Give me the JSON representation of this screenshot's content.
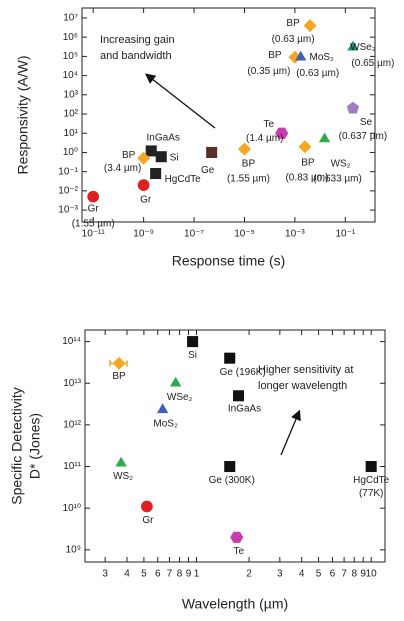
{
  "chart_data": [
    {
      "type": "scatter",
      "xlabel": "Response time (s)",
      "ylabel": [
        "Responsivity (A/W)"
      ],
      "xlog": true,
      "ylog": true,
      "xlim": [
        3.6e-12,
        1.5
      ],
      "ylim": [
        0.00024,
        33000000
      ],
      "xticks": [
        {
          "value": 1e-11,
          "label": "10⁻¹¹"
        },
        {
          "value": 1e-09,
          "label": "10⁻⁹"
        },
        {
          "value": 1e-07,
          "label": "10⁻⁷"
        },
        {
          "value": 1e-05,
          "label": "10⁻⁵"
        },
        {
          "value": 0.001,
          "label": "10⁻³"
        },
        {
          "value": 0.1,
          "label": "10⁻¹"
        }
      ],
      "yticks": [
        {
          "value": 0.001,
          "label": "10⁻³"
        },
        {
          "value": 0.01,
          "label": "10⁻²"
        },
        {
          "value": 0.1,
          "label": "10⁻¹"
        },
        {
          "value": 1,
          "label": "10⁰"
        },
        {
          "value": 10,
          "label": "10¹"
        },
        {
          "value": 100,
          "label": "10²"
        },
        {
          "value": 1000,
          "label": "10³"
        },
        {
          "value": 10000,
          "label": "10⁴"
        },
        {
          "value": 100000,
          "label": "10⁵"
        },
        {
          "value": 1000000,
          "label": "10⁶"
        },
        {
          "value": 10000000,
          "label": "10⁷"
        }
      ],
      "annotation": [
        "Increasing gain",
        "and bandwidth"
      ],
      "points": [
        {
          "label": "BP",
          "sublabel": "(0.63 µm)",
          "x": 0.004,
          "y": 4000000,
          "marker": "diamond",
          "color": "#f5a623"
        },
        {
          "label": "WSe₂",
          "sublabel": "(0.65 µm)",
          "x": 0.2,
          "y": 300000,
          "marker": "triangle",
          "color": "#1a8f7a"
        },
        {
          "label": "BP",
          "sublabel": "(0.35 µm)",
          "x": 0.001,
          "y": 90000,
          "marker": "diamond",
          "color": "#f5a623"
        },
        {
          "label": "MoS₂",
          "sublabel": "(0.63 µm)",
          "x": 0.0017,
          "y": 90000,
          "marker": "triangle",
          "color": "#3f5fb0"
        },
        {
          "label": "Se",
          "sublabel": "(0.637 µm)",
          "x": 0.2,
          "y": 200,
          "marker": "pentagon",
          "color": "#a07cc0"
        },
        {
          "label": "Te",
          "sublabel": "(1.4 µm)",
          "x": 0.0003,
          "y": 10,
          "marker": "hexagon",
          "color": "#c83cb0"
        },
        {
          "label": "WS₂",
          "sublabel": "(0.633 µm)",
          "x": 0.015,
          "y": 5,
          "marker": "triangle",
          "color": "#2eaa4f"
        },
        {
          "label": "BP",
          "sublabel": "(0.83 µm)",
          "x": 0.0025,
          "y": 2,
          "marker": "diamond",
          "color": "#f5a623"
        },
        {
          "label": "BP",
          "sublabel": "(1.55 µm)",
          "x": 1e-05,
          "y": 1.5,
          "marker": "diamond",
          "color": "#f5a623"
        },
        {
          "label": "Ge",
          "x": 5e-07,
          "y": 1,
          "marker": "square",
          "color": "#5a2f2a"
        },
        {
          "label": "InGaAs",
          "x": 2e-09,
          "y": 1.2,
          "marker": "square",
          "color": "#222222"
        },
        {
          "label": "Si",
          "x": 5e-09,
          "y": 0.6,
          "marker": "square",
          "color": "#222222"
        },
        {
          "label": "BP",
          "sublabel": "(3.4 µm)",
          "x": 1e-09,
          "y": 0.5,
          "marker": "diamond",
          "color": "#f5a623"
        },
        {
          "label": "HgCdTe",
          "x": 3e-09,
          "y": 0.08,
          "marker": "square",
          "color": "#222222"
        },
        {
          "label": "Gr",
          "x": 1e-09,
          "y": 0.02,
          "marker": "circle",
          "color": "#e02020"
        },
        {
          "label": "Gr",
          "sublabel": "(1.55 µm)",
          "x": 1e-11,
          "y": 0.005,
          "marker": "circle",
          "color": "#e02020"
        }
      ]
    },
    {
      "type": "scatter",
      "xlabel": "Wavelength (µm)",
      "ylabel": [
        "Specific Detectivity",
        "D* (Jones)"
      ],
      "xlog": true,
      "ylog": true,
      "xlim": [
        0.23,
        12
      ],
      "ylim": [
        510000000,
        190000000000000
      ],
      "xticks": [
        {
          "value": 0.3,
          "label": "3"
        },
        {
          "value": 0.4,
          "label": "4"
        },
        {
          "value": 0.5,
          "label": "5"
        },
        {
          "value": 0.6,
          "label": "6"
        },
        {
          "value": 0.7,
          "label": "7"
        },
        {
          "value": 0.8,
          "label": "8"
        },
        {
          "value": 0.9,
          "label": "9"
        },
        1,
        2,
        3,
        4,
        5,
        6,
        7,
        8,
        9,
        10
      ],
      "yticks": [
        {
          "value": 1000000000,
          "label": "10⁹"
        },
        {
          "value": 10000000000,
          "label": "10¹⁰"
        },
        {
          "value": 100000000000,
          "label": "10¹¹"
        },
        {
          "value": 1000000000000,
          "label": "10¹²"
        },
        {
          "value": 10000000000000,
          "label": "10¹³"
        },
        {
          "value": 100000000000000,
          "label": "10¹⁴"
        }
      ],
      "annotation": [
        "Higher sensitivity at",
        "longer wavelength"
      ],
      "points": [
        {
          "label": "BP",
          "x": 0.36,
          "xerr": 0.04,
          "y": 30000000000000,
          "marker": "diamond",
          "color": "#f5a623"
        },
        {
          "label": "Si",
          "x": 0.95,
          "y": 100000000000000,
          "marker": "square",
          "color": "#111111"
        },
        {
          "label": "Ge (196K)",
          "x": 1.55,
          "y": 40000000000000,
          "marker": "square",
          "color": "#111111"
        },
        {
          "label": "WSe₂",
          "x": 0.76,
          "y": 10000000000000,
          "marker": "triangle",
          "color": "#2eaa4f"
        },
        {
          "label": "InGaAs",
          "x": 1.74,
          "y": 5000000000000,
          "marker": "square",
          "color": "#111111"
        },
        {
          "label": "MoS₂",
          "x": 0.64,
          "y": 2300000000000,
          "marker": "triangle",
          "color": "#3f5fb0"
        },
        {
          "label": "WS₂",
          "x": 0.37,
          "y": 120000000000,
          "marker": "triangle",
          "color": "#2eaa4f"
        },
        {
          "label": "Ge (300K)",
          "x": 1.55,
          "y": 100000000000,
          "marker": "square",
          "color": "#111111"
        },
        {
          "label": "HgCdTe",
          "sublabel": "(77K)",
          "x": 10,
          "y": 100000000000,
          "marker": "square",
          "color": "#111111"
        },
        {
          "label": "Gr",
          "x": 0.52,
          "y": 11000000000,
          "marker": "circle",
          "color": "#e02020"
        },
        {
          "label": "Te",
          "x": 1.7,
          "y": 2000000000,
          "marker": "hexagon",
          "color": "#c83cb0"
        }
      ]
    }
  ]
}
